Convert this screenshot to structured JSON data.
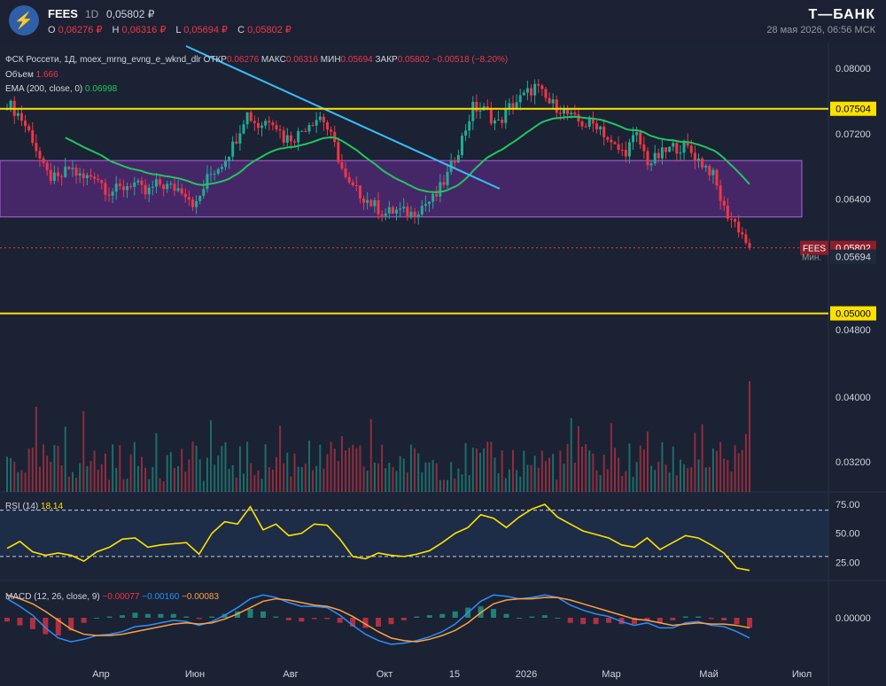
{
  "header": {
    "ticker": "FEES",
    "timeframe": "1D",
    "last_price": "0,05802 ₽",
    "ohlc": [
      {
        "k": "O",
        "v": "0,06276 ₽"
      },
      {
        "k": "H",
        "v": "0,06316 ₽"
      },
      {
        "k": "L",
        "v": "0,05694 ₽"
      },
      {
        "k": "C",
        "v": "0,05802 ₽"
      }
    ],
    "brand": "Т—БАНК",
    "datetime": "28 мая 2026, 06:56 МСК"
  },
  "legend": {
    "main": "ФСК Россети, 1Д, moex_mrng_evng_e_wknd_dlr",
    "open_label": "ОТКР",
    "open": "0.06276",
    "high_label": "МАКС",
    "high": "0.06316",
    "low_label": "МИН",
    "low": "0.05694",
    "close_label": "ЗАКР",
    "close": "0.05802",
    "change": "−0.00518 (−8.20%)",
    "volume_label": "Объем",
    "volume_value": "1.666",
    "ema_label": "EMA (200, close, 0)",
    "ema_value": "0.06998",
    "rsi_label": "RSI (14)",
    "rsi_value": "18.14",
    "macd_label": "MACD (12, 26, close, 9)",
    "macd_v1": "−0.00077",
    "macd_v2": "−0.00160",
    "macd_v3": "−0.00083"
  },
  "colors": {
    "up": "#22ab94",
    "down": "#f23645",
    "ema": "#22c55e",
    "trendline": "#38bdf8",
    "hline": "#ffe000",
    "zone": "#7b2fa8",
    "rsi": "#ffe000",
    "macd": "#2f8dfa",
    "signal": "#ff9f40"
  },
  "chart_data": [
    {
      "type": "candlestick",
      "title": "ФСК Россети, 1Д",
      "x_ticks": [
        "Апр",
        "Июн",
        "Авг",
        "Окт",
        "15",
        "2026",
        "Мар",
        "Май",
        "Июл"
      ],
      "y_ticks": [
        "0.08000",
        "0.07200",
        "0.06400",
        "0.04800",
        "0.04000",
        "0.03200"
      ],
      "ylim": [
        0.028,
        0.0815
      ],
      "close_series": [
        0.0758,
        0.0742,
        0.0715,
        0.0672,
        0.0662,
        0.0679,
        0.0664,
        0.0671,
        0.0649,
        0.0652,
        0.0661,
        0.0646,
        0.0659,
        0.0654,
        0.0652,
        0.0631,
        0.0668,
        0.0683,
        0.0707,
        0.0746,
        0.0729,
        0.0741,
        0.0714,
        0.0717,
        0.0734,
        0.0742,
        0.0706,
        0.0658,
        0.0647,
        0.0634,
        0.0622,
        0.0626,
        0.0621,
        0.0632,
        0.0641,
        0.0669,
        0.0707,
        0.0752,
        0.0748,
        0.0731,
        0.0754,
        0.0765,
        0.0778,
        0.0758,
        0.0751,
        0.0737,
        0.0731,
        0.0732,
        0.0706,
        0.0696,
        0.0718,
        0.0683,
        0.0695,
        0.0704,
        0.0703,
        0.0687,
        0.0673,
        0.0626,
        0.0608,
        0.05802
      ],
      "horizontal_levels": [
        {
          "label": "0.07504",
          "value": 0.07504
        },
        {
          "label": "0.05000",
          "value": 0.05
        }
      ],
      "zone": {
        "from": 0.0618,
        "to": 0.0687
      },
      "price_label": {
        "name": "FEES",
        "value": "0.05802"
      },
      "min_label": {
        "name": "Мин.",
        "value": "0.05694"
      }
    },
    {
      "type": "line",
      "title": "RSI (14)",
      "y_ticks": [
        "75.00",
        "50.00",
        "25.00"
      ],
      "ylim": [
        10,
        85
      ],
      "levels": [
        70,
        30
      ],
      "values": [
        37,
        43,
        34,
        31,
        33,
        31,
        26,
        34,
        38,
        45,
        46,
        38,
        40,
        41,
        42,
        32,
        50,
        60,
        58,
        73,
        53,
        58,
        48,
        50,
        58,
        57,
        45,
        30,
        28,
        33,
        31,
        30,
        32,
        35,
        42,
        50,
        55,
        66,
        63,
        55,
        64,
        71,
        75,
        64,
        58,
        52,
        49,
        46,
        40,
        38,
        46,
        36,
        42,
        48,
        46,
        40,
        33,
        20,
        18
      ]
    },
    {
      "type": "line",
      "title": "MACD (12, 26, close, 9)",
      "y_ticks": [
        "0.00000"
      ],
      "ylim": [
        -0.0035,
        0.0028
      ],
      "macd": [
        0.0015,
        0.0009,
        0.0002,
        -0.0008,
        -0.0016,
        -0.0019,
        -0.0017,
        -0.0014,
        -0.0013,
        -0.0011,
        -0.0007,
        -0.0006,
        -0.0004,
        -0.0002,
        -0.0003,
        -0.0006,
        -0.0003,
        0.0002,
        0.0008,
        0.0015,
        0.0018,
        0.0016,
        0.0012,
        0.0009,
        0.0009,
        0.0008,
        0.0002,
        -0.0006,
        -0.0013,
        -0.0018,
        -0.0021,
        -0.002,
        -0.0018,
        -0.0015,
        -0.0011,
        -0.0005,
        0.0004,
        0.0013,
        0.0018,
        0.0017,
        0.0015,
        0.0016,
        0.0018,
        0.0016,
        0.001,
        0.0006,
        0.0003,
        0.0001,
        -0.0003,
        -0.0006,
        -0.0004,
        -0.0008,
        -0.0008,
        -0.0004,
        -0.0003,
        -0.0006,
        -0.0007,
        -0.0011,
        -0.0016
      ],
      "signal": [
        0.0018,
        0.0015,
        0.0011,
        0.0005,
        -0.0002,
        -0.0009,
        -0.0013,
        -0.0014,
        -0.0014,
        -0.0013,
        -0.0011,
        -0.0009,
        -0.0007,
        -0.0005,
        -0.0004,
        -0.0005,
        -0.0004,
        -0.0001,
        0.0003,
        0.0008,
        0.0013,
        0.0015,
        0.0014,
        0.0012,
        0.001,
        0.0009,
        0.0006,
        0.0001,
        -0.0005,
        -0.0011,
        -0.0016,
        -0.0018,
        -0.0019,
        -0.0017,
        -0.0014,
        -0.001,
        -0.0004,
        0.0004,
        0.0011,
        0.0014,
        0.0015,
        0.0015,
        0.0016,
        0.0016,
        0.0014,
        0.0011,
        0.0008,
        0.0005,
        0.0002,
        -0.0001,
        -0.0002,
        -0.0004,
        -0.0006,
        -0.0005,
        -0.0004,
        -0.0005,
        -0.0005,
        -0.0006,
        -0.0008
      ]
    }
  ]
}
